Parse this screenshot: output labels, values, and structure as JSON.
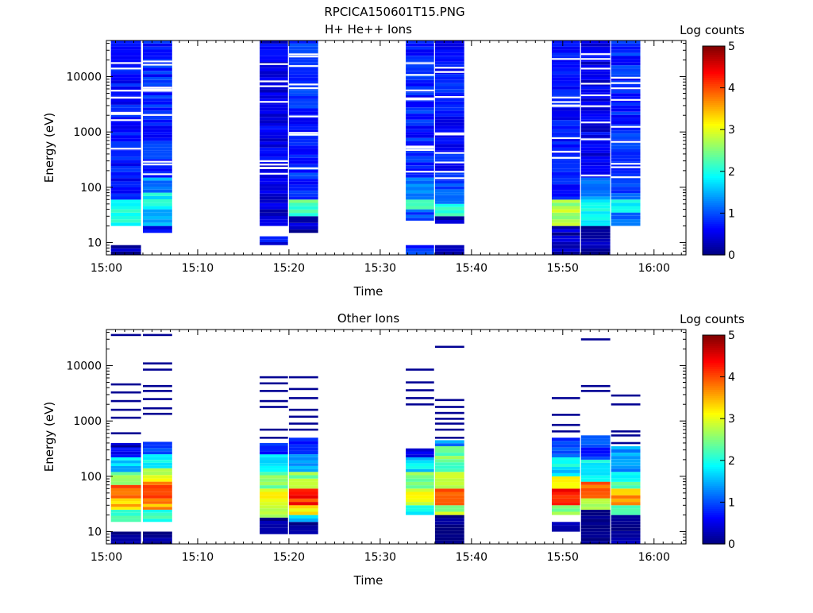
{
  "figure_title": "RPCICA150601T15.PNG",
  "colorbar": {
    "label": "Log counts",
    "ticks": [
      "0",
      "1",
      "2",
      "3",
      "4",
      "5"
    ],
    "colors": [
      "#00007f",
      "#0000ff",
      "#007fff",
      "#00ffff",
      "#7fff7f",
      "#ffff00",
      "#ff7f00",
      "#ff0000",
      "#7f0000"
    ]
  },
  "chart_data": [
    {
      "type": "heatmap",
      "title": "H+ He++ Ions",
      "xlabel": "Time",
      "ylabel": "Energy (eV)",
      "x_ticks": [
        "15:00",
        "15:10",
        "15:20",
        "15:30",
        "15:40",
        "15:50",
        "16:00"
      ],
      "y_ticks": [
        "10",
        "100",
        "1000",
        "10000"
      ],
      "y_scale": "log",
      "ylim_eV": [
        6,
        45000
      ],
      "xlim_min": [
        0,
        63.5
      ],
      "value_label": "Log counts",
      "value_range": [
        0,
        5
      ],
      "columns": [
        {
          "t0": 0.5,
          "t1": 3.8,
          "profile": [
            [
              6,
              9,
              0.2
            ],
            [
              20,
              40,
              2.0
            ],
            [
              40,
              60,
              1.8
            ],
            [
              60,
              45000,
              0.7
            ]
          ]
        },
        {
          "t0": 4.0,
          "t1": 7.2,
          "profile": [
            [
              15,
              20,
              0.5
            ],
            [
              20,
              40,
              1.5
            ],
            [
              40,
              80,
              1.9
            ],
            [
              80,
              150,
              1.3
            ],
            [
              150,
              45000,
              0.8
            ]
          ]
        },
        {
          "t0": 16.8,
          "t1": 19.9,
          "profile": [
            [
              9,
              13,
              0.6
            ],
            [
              20,
              40,
              0.3
            ],
            [
              40,
              100,
              0.4
            ],
            [
              100,
              45000,
              0.5
            ]
          ]
        },
        {
          "t0": 20.0,
          "t1": 23.2,
          "profile": [
            [
              15,
              30,
              0.3
            ],
            [
              30,
              60,
              2.2
            ],
            [
              60,
              300,
              0.8
            ],
            [
              300,
              45000,
              0.8
            ]
          ]
        },
        {
          "t0": 32.8,
          "t1": 35.9,
          "profile": [
            [
              6,
              9,
              0.8
            ],
            [
              25,
              40,
              1.0
            ],
            [
              40,
              60,
              2.1
            ],
            [
              60,
              150,
              1.2
            ],
            [
              150,
              45000,
              0.8
            ]
          ]
        },
        {
          "t0": 36.0,
          "t1": 39.2,
          "profile": [
            [
              6,
              9,
              0.2
            ],
            [
              22,
              30,
              0.3
            ],
            [
              30,
              50,
              2.0
            ],
            [
              50,
              150,
              1.0
            ],
            [
              150,
              45000,
              0.7
            ]
          ]
        },
        {
          "t0": 48.8,
          "t1": 51.9,
          "profile": [
            [
              6,
              20,
              0.3
            ],
            [
              20,
              40,
              2.8
            ],
            [
              40,
              60,
              2.6
            ],
            [
              60,
              45000,
              0.7
            ]
          ]
        },
        {
          "t0": 52.0,
          "t1": 55.2,
          "profile": [
            [
              6,
              20,
              0.2
            ],
            [
              20,
              60,
              2.0
            ],
            [
              60,
              150,
              1.3
            ],
            [
              150,
              45000,
              0.5
            ]
          ]
        },
        {
          "t0": 55.3,
          "t1": 58.5,
          "profile": [
            [
              20,
              35,
              1.2
            ],
            [
              35,
              60,
              2.0
            ],
            [
              60,
              200,
              1.0
            ],
            [
              200,
              45000,
              0.8
            ]
          ]
        }
      ]
    },
    {
      "type": "heatmap",
      "title": "Other Ions",
      "xlabel": "Time",
      "ylabel": "Energy (eV)",
      "x_ticks": [
        "15:00",
        "15:10",
        "15:20",
        "15:30",
        "15:40",
        "15:50",
        "16:00"
      ],
      "y_ticks": [
        "10",
        "100",
        "1000",
        "10000"
      ],
      "y_scale": "log",
      "ylim_eV": [
        6,
        45000
      ],
      "xlim_min": [
        0,
        63.5
      ],
      "value_label": "Log counts",
      "value_range": [
        0,
        5
      ],
      "columns": [
        {
          "t0": 0.5,
          "t1": 3.8,
          "profile": [
            [
              6,
              10,
              0.1
            ],
            [
              15,
              25,
              2.0
            ],
            [
              25,
              40,
              3.4
            ],
            [
              40,
              70,
              3.8
            ],
            [
              70,
              120,
              2.6
            ],
            [
              120,
              220,
              1.6
            ],
            [
              220,
              400,
              0.7
            ]
          ],
          "lines": [
            350,
            600,
            1150,
            1600,
            2300,
            3300,
            4600,
            36000
          ]
        },
        {
          "t0": 4.0,
          "t1": 7.2,
          "profile": [
            [
              6,
              10,
              0.1
            ],
            [
              15,
              25,
              2.2
            ],
            [
              25,
              40,
              3.6
            ],
            [
              40,
              80,
              3.9
            ],
            [
              80,
              140,
              3.0
            ],
            [
              140,
              250,
              2.0
            ],
            [
              250,
              420,
              1.0
            ]
          ],
          "lines": [
            1350,
            1700,
            2500,
            3500,
            4300,
            8500,
            11000,
            36000
          ]
        },
        {
          "t0": 16.8,
          "t1": 19.9,
          "profile": [
            [
              9,
              18,
              0.1
            ],
            [
              18,
              30,
              2.8
            ],
            [
              30,
              60,
              3.0
            ],
            [
              60,
              120,
              2.4
            ],
            [
              120,
              250,
              1.6
            ],
            [
              250,
              400,
              0.8
            ]
          ],
          "lines": [
            500,
            700,
            1800,
            2300,
            3500,
            4800,
            6200
          ]
        },
        {
          "t0": 20.0,
          "t1": 23.2,
          "profile": [
            [
              9,
              15,
              0.1
            ],
            [
              15,
              20,
              1.6
            ],
            [
              20,
              30,
              3.3
            ],
            [
              30,
              60,
              4.2
            ],
            [
              60,
              120,
              2.6
            ],
            [
              120,
              250,
              1.5
            ],
            [
              250,
              500,
              0.9
            ]
          ],
          "lines": [
            700,
            900,
            1200,
            1600,
            2600,
            3800,
            6200
          ]
        },
        {
          "t0": 32.8,
          "t1": 35.9,
          "profile": [
            [
              20,
              30,
              1.8
            ],
            [
              30,
              60,
              3.1
            ],
            [
              60,
              120,
              2.6
            ],
            [
              120,
              220,
              1.7
            ],
            [
              220,
              320,
              0.5
            ]
          ],
          "lines": [
            2000,
            2600,
            3600,
            5000,
            8500
          ]
        },
        {
          "t0": 36.0,
          "t1": 39.2,
          "profile": [
            [
              6,
              20,
              0.1
            ],
            [
              20,
              30,
              2.7
            ],
            [
              30,
              60,
              3.8
            ],
            [
              60,
              120,
              3.0
            ],
            [
              120,
              350,
              2.4
            ],
            [
              350,
              450,
              1.3
            ]
          ],
          "lines": [
            500,
            700,
            900,
            1100,
            1400,
            1800,
            2400,
            22000
          ]
        },
        {
          "t0": 48.8,
          "t1": 51.9,
          "profile": [
            [
              10,
              15,
              0.1
            ],
            [
              20,
              30,
              2.6
            ],
            [
              30,
              60,
              4.3
            ],
            [
              60,
              100,
              3.0
            ],
            [
              100,
              220,
              1.8
            ],
            [
              220,
              500,
              1.0
            ]
          ],
          "lines": [
            650,
            850,
            1300,
            2600
          ]
        },
        {
          "t0": 52.0,
          "t1": 55.2,
          "profile": [
            [
              6,
              25,
              0.1
            ],
            [
              25,
              40,
              2.6
            ],
            [
              40,
              80,
              3.8
            ],
            [
              80,
              200,
              2.0
            ],
            [
              200,
              550,
              0.9
            ]
          ],
          "lines": [
            3500,
            4300,
            30000
          ]
        },
        {
          "t0": 55.3,
          "t1": 58.5,
          "profile": [
            [
              6,
              20,
              0.1
            ],
            [
              20,
              30,
              2.2
            ],
            [
              30,
              60,
              3.6
            ],
            [
              60,
              120,
              2.1
            ],
            [
              120,
              350,
              1.4
            ]
          ],
          "lines": [
            400,
            550,
            650,
            2000,
            2900
          ]
        }
      ]
    }
  ]
}
